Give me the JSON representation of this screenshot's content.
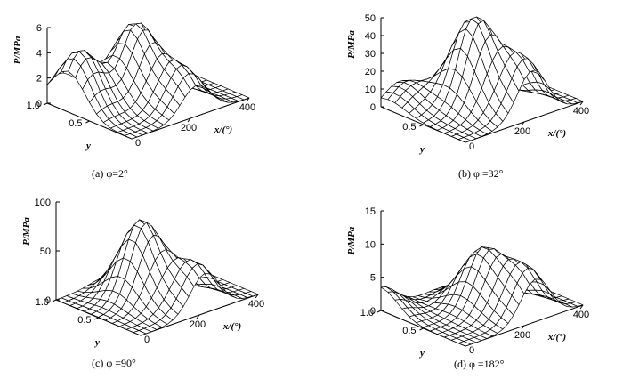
{
  "chart_data": [
    {
      "type": "surface3d",
      "id": "a",
      "caption": "(a) φ=2°",
      "xlabel": "x/(°)",
      "ylabel": "y",
      "zlabel": "P/MPa",
      "xlim": [
        0,
        400
      ],
      "ylim": [
        0,
        1.0
      ],
      "zlim": [
        0,
        6
      ],
      "xticks": [
        "200",
        "400"
      ],
      "yticks": [
        "1.0",
        "0.5"
      ],
      "zticks": [
        "0",
        "2",
        "4",
        "6"
      ],
      "peaks": [
        {
          "x": 40,
          "y": 0.75,
          "value": 4.5
        },
        {
          "x": 185,
          "y": 0.6,
          "value": 5.9
        },
        {
          "x": 220,
          "y": 0.15,
          "value": 3.2
        }
      ]
    },
    {
      "type": "surface3d",
      "id": "b",
      "caption": "(b) φ =32°",
      "xlabel": "x/(°)",
      "ylabel": "y",
      "zlabel": "P/MPa",
      "xlim": [
        0,
        400
      ],
      "ylim": [
        0,
        1.0
      ],
      "zlim": [
        0,
        50
      ],
      "xticks": [
        "200",
        "400"
      ],
      "yticks": [
        "0.5"
      ],
      "zticks": [
        "0",
        "10",
        "20",
        "30",
        "40",
        "50"
      ],
      "peaks": [
        {
          "x": 60,
          "y": 0.9,
          "value": 12
        },
        {
          "x": 170,
          "y": 0.5,
          "value": 50
        },
        {
          "x": 230,
          "y": 0.1,
          "value": 30
        }
      ]
    },
    {
      "type": "surface3d",
      "id": "c",
      "caption": "(c) φ =90°",
      "xlabel": "x/(°)",
      "ylabel": "y",
      "zlabel": "P/MPa",
      "xlim": [
        0,
        400
      ],
      "ylim": [
        0,
        1.0
      ],
      "zlim": [
        0,
        100
      ],
      "xticks": [
        "200",
        "400"
      ],
      "yticks": [
        "1.0",
        "0.5",
        "0"
      ],
      "zticks": [
        "0",
        "50",
        "100"
      ],
      "peaks": [
        {
          "x": 160,
          "y": 0.55,
          "value": 80
        },
        {
          "x": 220,
          "y": 0.1,
          "value": 45
        }
      ]
    },
    {
      "type": "surface3d",
      "id": "d",
      "caption": "(d) φ =182°",
      "xlabel": "x/(°)",
      "ylabel": "y",
      "zlabel": "P/MPa",
      "xlim": [
        0,
        400
      ],
      "ylim": [
        0,
        1.0
      ],
      "zlim": [
        0,
        15
      ],
      "xticks": [
        "200",
        "400"
      ],
      "yticks": [
        "1.0",
        "0.5",
        "0"
      ],
      "zticks": [
        "0",
        "5",
        "10",
        "15"
      ],
      "peaks": [
        {
          "x": 0,
          "y": 1.0,
          "value": 3.5
        },
        {
          "x": 200,
          "y": 0.5,
          "value": 8.5
        },
        {
          "x": 240,
          "y": 0.1,
          "value": 7
        }
      ]
    }
  ]
}
